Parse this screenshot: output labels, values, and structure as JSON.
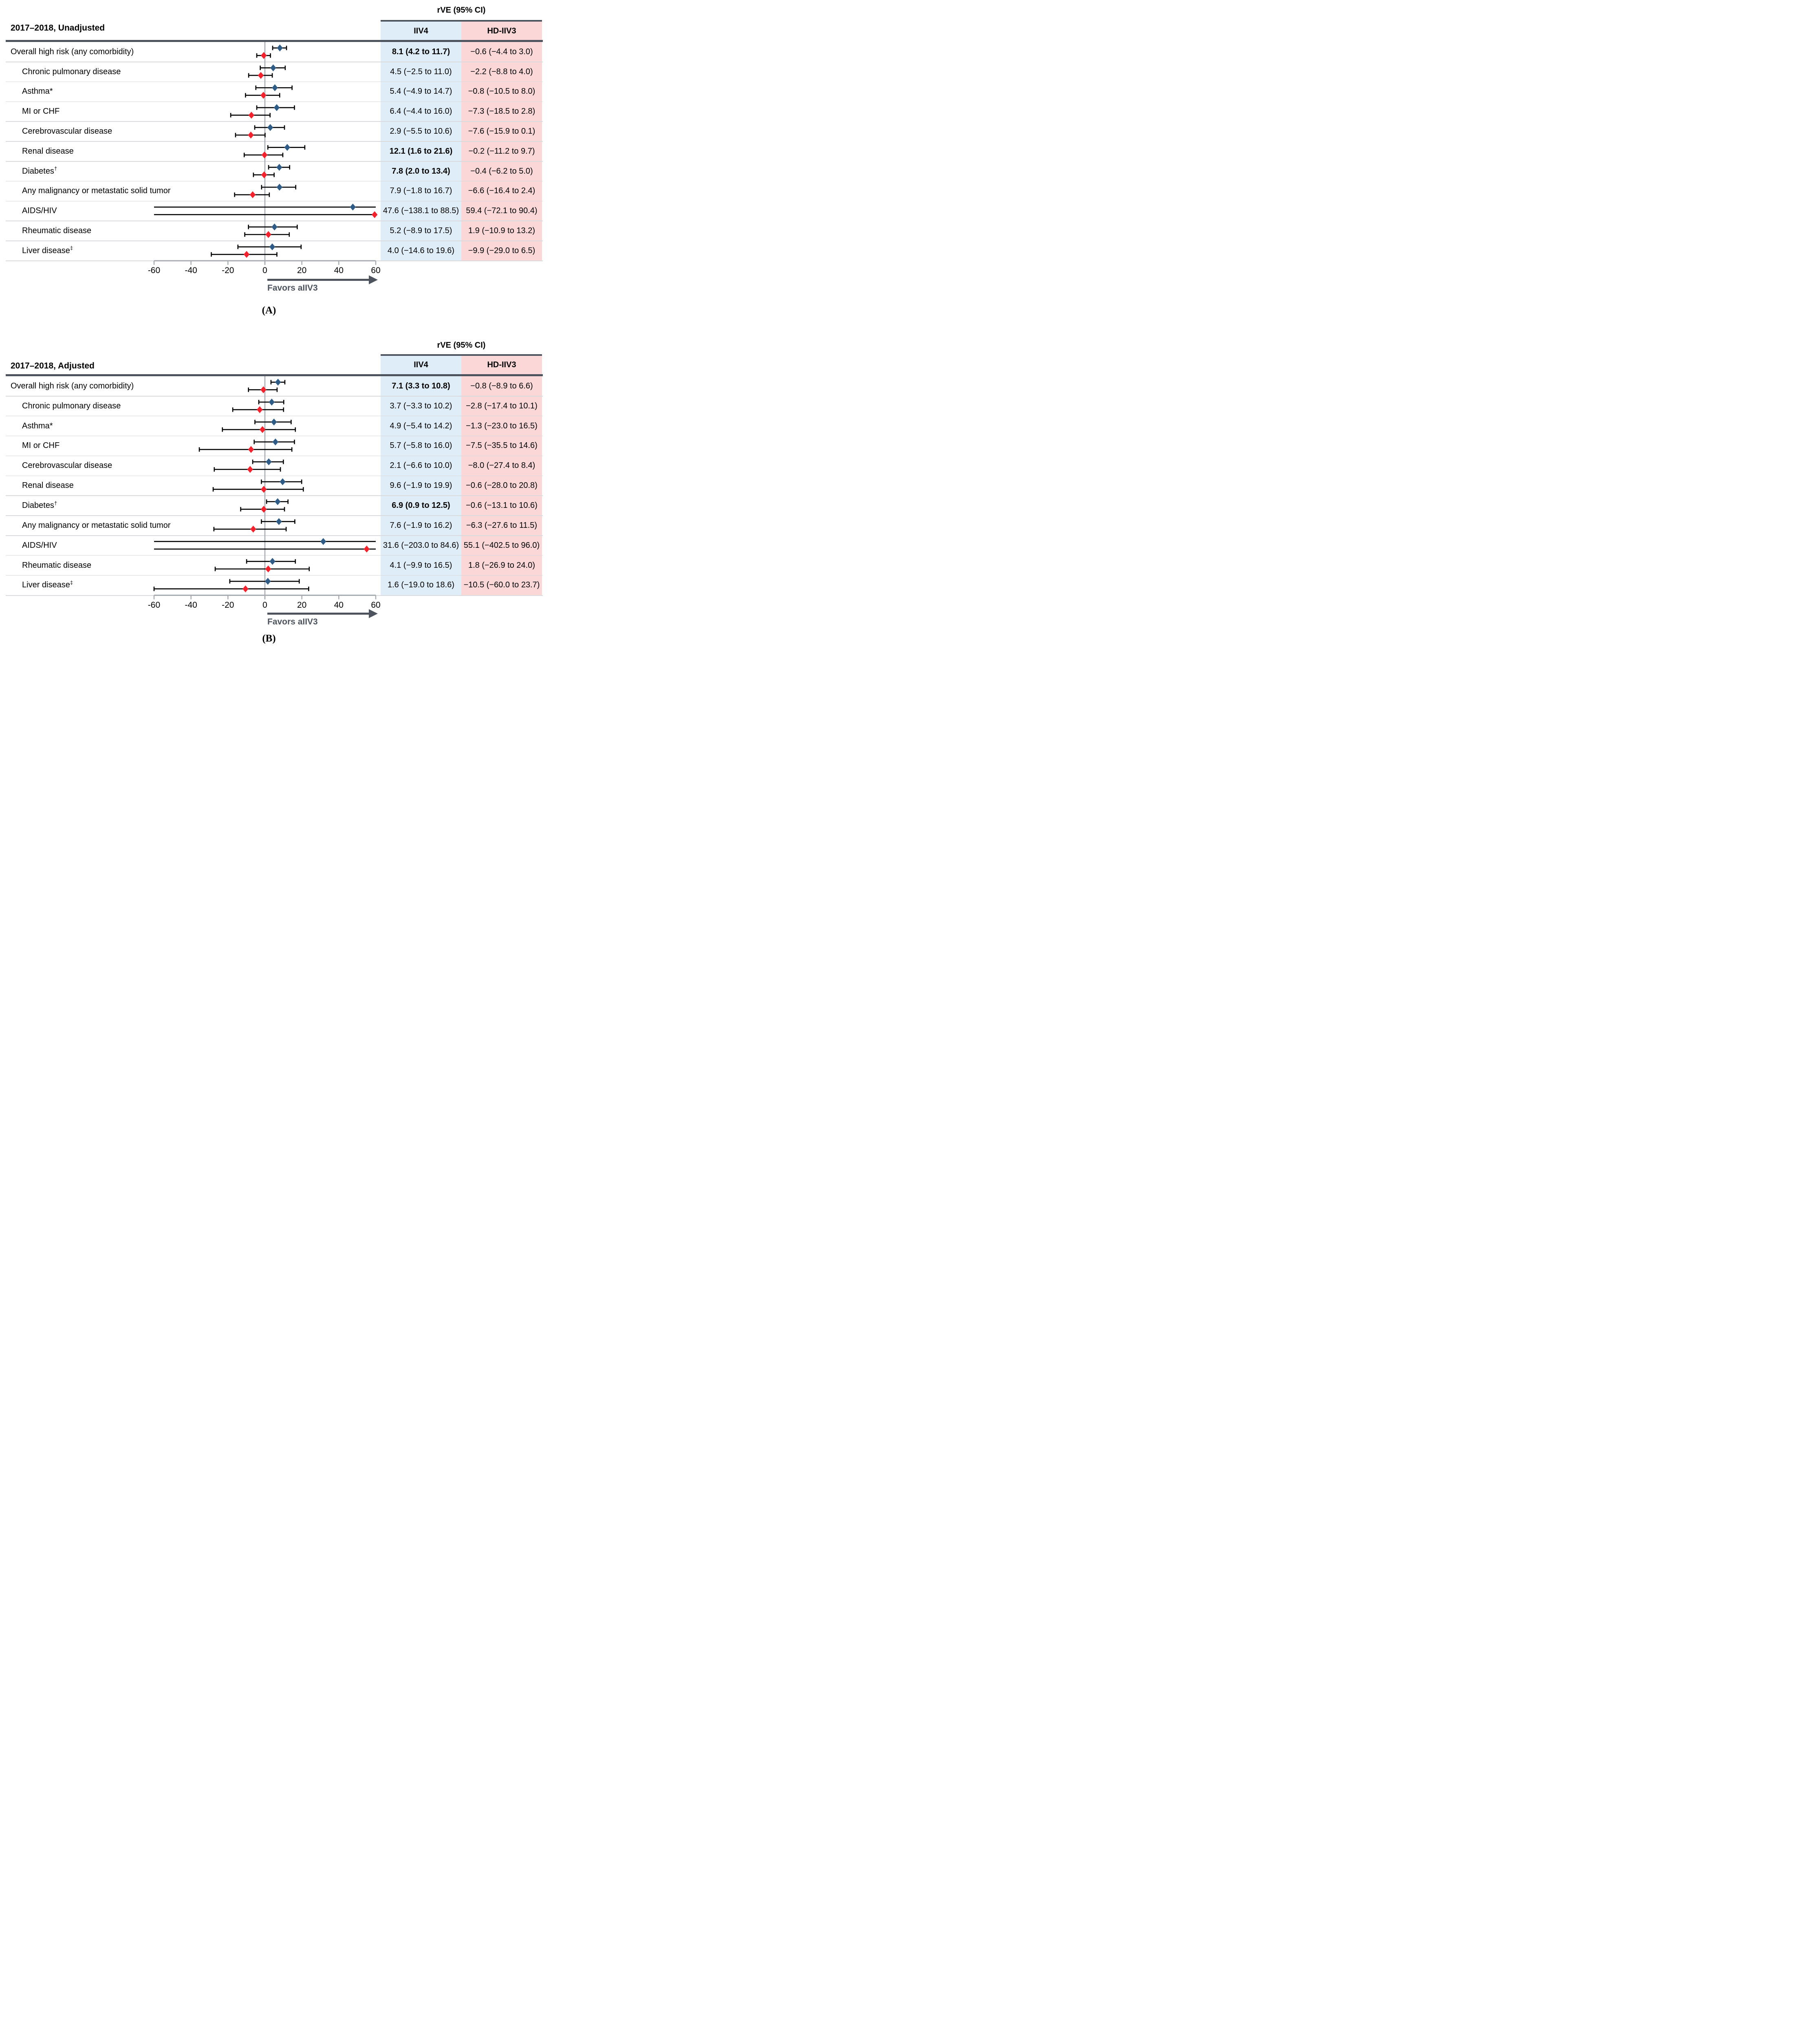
{
  "chart_data": {
    "type": "forest",
    "columns_header": "rVE (95% CI)",
    "series_labels": [
      "IIV4",
      "HD-IIV3"
    ],
    "x_axis": {
      "min": -60,
      "max": 60,
      "ticks": [
        "-60",
        "-40",
        "-20",
        "0",
        "20",
        "40",
        "60"
      ],
      "tick_values": [
        -60,
        -40,
        -20,
        0,
        20,
        40,
        60
      ],
      "arrow_label": "Favors aIIV3"
    },
    "panels": [
      {
        "tag": "(A)",
        "title": "2017–2018, Unadjusted",
        "rows": [
          {
            "label": "Overall high risk (any comorbidity)",
            "sup": "",
            "indent": false,
            "iiv4": {
              "est": 8.1,
              "lo": 4.2,
              "hi": 11.7,
              "text": "8.1 (4.2 to 11.7)",
              "bold": true
            },
            "hd_iiv3": {
              "est": -0.6,
              "lo": -4.4,
              "hi": 3.0,
              "text": "−0.6 (−4.4 to 3.0)",
              "bold": false
            }
          },
          {
            "label": "Chronic pulmonary disease",
            "sup": "",
            "indent": true,
            "iiv4": {
              "est": 4.5,
              "lo": -2.5,
              "hi": 11.0,
              "text": "4.5 (−2.5 to 11.0)",
              "bold": false
            },
            "hd_iiv3": {
              "est": -2.2,
              "lo": -8.8,
              "hi": 4.0,
              "text": "−2.2 (−8.8 to 4.0)",
              "bold": false
            }
          },
          {
            "label": "Asthma*",
            "sup": "",
            "indent": true,
            "iiv4": {
              "est": 5.4,
              "lo": -4.9,
              "hi": 14.7,
              "text": "5.4 (−4.9 to 14.7)",
              "bold": false
            },
            "hd_iiv3": {
              "est": -0.8,
              "lo": -10.5,
              "hi": 8.0,
              "text": "−0.8 (−10.5 to 8.0)",
              "bold": false
            }
          },
          {
            "label": "MI or CHF",
            "sup": "",
            "indent": true,
            "iiv4": {
              "est": 6.4,
              "lo": -4.4,
              "hi": 16.0,
              "text": "6.4 (−4.4 to 16.0)",
              "bold": false
            },
            "hd_iiv3": {
              "est": -7.3,
              "lo": -18.5,
              "hi": 2.8,
              "text": "−7.3 (−18.5 to 2.8)",
              "bold": false
            }
          },
          {
            "label": "Cerebrovascular disease",
            "sup": "",
            "indent": true,
            "iiv4": {
              "est": 2.9,
              "lo": -5.5,
              "hi": 10.6,
              "text": "2.9 (−5.5 to 10.6)",
              "bold": false
            },
            "hd_iiv3": {
              "est": -7.6,
              "lo": -15.9,
              "hi": 0.1,
              "text": "−7.6 (−15.9 to 0.1)",
              "bold": false
            }
          },
          {
            "label": "Renal disease",
            "sup": "",
            "indent": true,
            "iiv4": {
              "est": 12.1,
              "lo": 1.6,
              "hi": 21.6,
              "text": "12.1 (1.6 to 21.6)",
              "bold": true
            },
            "hd_iiv3": {
              "est": -0.2,
              "lo": -11.2,
              "hi": 9.7,
              "text": "−0.2 (−11.2 to 9.7)",
              "bold": false
            }
          },
          {
            "label": "Diabetes",
            "sup": "†",
            "indent": true,
            "iiv4": {
              "est": 7.8,
              "lo": 2.0,
              "hi": 13.4,
              "text": "7.8 (2.0 to 13.4)",
              "bold": true
            },
            "hd_iiv3": {
              "est": -0.4,
              "lo": -6.2,
              "hi": 5.0,
              "text": "−0.4 (−6.2 to 5.0)",
              "bold": false
            }
          },
          {
            "label": "Any malignancy or metastatic solid tumor",
            "sup": "",
            "indent": true,
            "iiv4": {
              "est": 7.9,
              "lo": -1.8,
              "hi": 16.7,
              "text": "7.9 (−1.8 to 16.7)",
              "bold": false
            },
            "hd_iiv3": {
              "est": -6.6,
              "lo": -16.4,
              "hi": 2.4,
              "text": "−6.6 (−16.4 to 2.4)",
              "bold": false
            }
          },
          {
            "label": "AIDS/HIV",
            "sup": "",
            "indent": true,
            "iiv4": {
              "est": 47.6,
              "lo": -138.1,
              "hi": 88.5,
              "text": "47.6 (−138.1 to 88.5)",
              "bold": false
            },
            "hd_iiv3": {
              "est": 59.4,
              "lo": -72.1,
              "hi": 90.4,
              "text": "59.4 (−72.1 to 90.4)",
              "bold": false
            }
          },
          {
            "label": "Rheumatic disease",
            "sup": "",
            "indent": true,
            "iiv4": {
              "est": 5.2,
              "lo": -8.9,
              "hi": 17.5,
              "text": "5.2 (−8.9 to 17.5)",
              "bold": false
            },
            "hd_iiv3": {
              "est": 1.9,
              "lo": -10.9,
              "hi": 13.2,
              "text": "1.9 (−10.9 to 13.2)",
              "bold": false
            }
          },
          {
            "label": "Liver disease",
            "sup": "‡",
            "indent": true,
            "iiv4": {
              "est": 4.0,
              "lo": -14.6,
              "hi": 19.6,
              "text": "4.0 (−14.6 to 19.6)",
              "bold": false
            },
            "hd_iiv3": {
              "est": -9.9,
              "lo": -29.0,
              "hi": 6.5,
              "text": "−9.9 (−29.0 to 6.5)",
              "bold": false
            }
          }
        ]
      },
      {
        "tag": "(B)",
        "title": "2017–2018, Adjusted",
        "rows": [
          {
            "label": "Overall high risk (any comorbidity)",
            "sup": "",
            "indent": false,
            "iiv4": {
              "est": 7.1,
              "lo": 3.3,
              "hi": 10.8,
              "text": "7.1 (3.3 to 10.8)",
              "bold": true
            },
            "hd_iiv3": {
              "est": -0.8,
              "lo": -8.9,
              "hi": 6.6,
              "text": "−0.8 (−8.9 to 6.6)",
              "bold": false
            }
          },
          {
            "label": "Chronic pulmonary disease",
            "sup": "",
            "indent": true,
            "iiv4": {
              "est": 3.7,
              "lo": -3.3,
              "hi": 10.2,
              "text": "3.7 (−3.3 to 10.2)",
              "bold": false
            },
            "hd_iiv3": {
              "est": -2.8,
              "lo": -17.4,
              "hi": 10.1,
              "text": "−2.8 (−17.4 to 10.1)",
              "bold": false
            }
          },
          {
            "label": "Asthma*",
            "sup": "",
            "indent": true,
            "iiv4": {
              "est": 4.9,
              "lo": -5.4,
              "hi": 14.2,
              "text": "4.9 (−5.4 to 14.2)",
              "bold": false
            },
            "hd_iiv3": {
              "est": -1.3,
              "lo": -23.0,
              "hi": 16.5,
              "text": "−1.3 (−23.0 to 16.5)",
              "bold": false
            }
          },
          {
            "label": "MI or CHF",
            "sup": "",
            "indent": true,
            "iiv4": {
              "est": 5.7,
              "lo": -5.8,
              "hi": 16.0,
              "text": "5.7 (−5.8 to 16.0)",
              "bold": false
            },
            "hd_iiv3": {
              "est": -7.5,
              "lo": -35.5,
              "hi": 14.6,
              "text": "−7.5 (−35.5 to 14.6)",
              "bold": false
            }
          },
          {
            "label": "Cerebrovascular disease",
            "sup": "",
            "indent": true,
            "iiv4": {
              "est": 2.1,
              "lo": -6.6,
              "hi": 10.0,
              "text": "2.1 (−6.6 to 10.0)",
              "bold": false
            },
            "hd_iiv3": {
              "est": -8.0,
              "lo": -27.4,
              "hi": 8.4,
              "text": "−8.0 (−27.4 to 8.4)",
              "bold": false
            }
          },
          {
            "label": "Renal disease",
            "sup": "",
            "indent": true,
            "iiv4": {
              "est": 9.6,
              "lo": -1.9,
              "hi": 19.9,
              "text": "9.6 (−1.9 to 19.9)",
              "bold": false
            },
            "hd_iiv3": {
              "est": -0.6,
              "lo": -28.0,
              "hi": 20.8,
              "text": "−0.6 (−28.0 to 20.8)",
              "bold": false
            }
          },
          {
            "label": "Diabetes",
            "sup": "†",
            "indent": true,
            "iiv4": {
              "est": 6.9,
              "lo": 0.9,
              "hi": 12.5,
              "text": "6.9 (0.9 to 12.5)",
              "bold": true
            },
            "hd_iiv3": {
              "est": -0.6,
              "lo": -13.1,
              "hi": 10.6,
              "text": "−0.6 (−13.1 to 10.6)",
              "bold": false
            }
          },
          {
            "label": "Any malignancy or metastatic solid tumor",
            "sup": "",
            "indent": true,
            "iiv4": {
              "est": 7.6,
              "lo": -1.9,
              "hi": 16.2,
              "text": "7.6 (−1.9 to 16.2)",
              "bold": false
            },
            "hd_iiv3": {
              "est": -6.3,
              "lo": -27.6,
              "hi": 11.5,
              "text": "−6.3 (−27.6 to 11.5)",
              "bold": false
            }
          },
          {
            "label": "AIDS/HIV",
            "sup": "",
            "indent": true,
            "iiv4": {
              "est": 31.6,
              "lo": -203.0,
              "hi": 84.6,
              "text": "31.6 (−203.0 to 84.6)",
              "bold": false
            },
            "hd_iiv3": {
              "est": 55.1,
              "lo": -402.5,
              "hi": 96.0,
              "text": "55.1 (−402.5 to 96.0)",
              "bold": false
            }
          },
          {
            "label": "Rheumatic disease",
            "sup": "",
            "indent": true,
            "iiv4": {
              "est": 4.1,
              "lo": -9.9,
              "hi": 16.5,
              "text": "4.1 (−9.9 to 16.5)",
              "bold": false
            },
            "hd_iiv3": {
              "est": 1.8,
              "lo": -26.9,
              "hi": 24.0,
              "text": "1.8 (−26.9 to 24.0)",
              "bold": false
            }
          },
          {
            "label": "Liver disease",
            "sup": "‡",
            "indent": true,
            "iiv4": {
              "est": 1.6,
              "lo": -19.0,
              "hi": 18.6,
              "text": "1.6 (−19.0 to 18.6)",
              "bold": false
            },
            "hd_iiv3": {
              "est": -10.5,
              "lo": -60.0,
              "hi": 23.7,
              "text": "−10.5 (−60.0 to 23.7)",
              "bold": false
            }
          }
        ]
      }
    ]
  },
  "colors": {
    "iiv4_marker": "#2e5c87",
    "hd_iiv3_marker": "#f5222d",
    "iiv4_column_bg": "#deedf8",
    "hd_iiv3_column_bg": "#fcd7d8",
    "dark_rule": "#4d545e",
    "row_separator": "#d8dade",
    "axis_gray": "#a7abb0",
    "ci_line": "#000000"
  }
}
